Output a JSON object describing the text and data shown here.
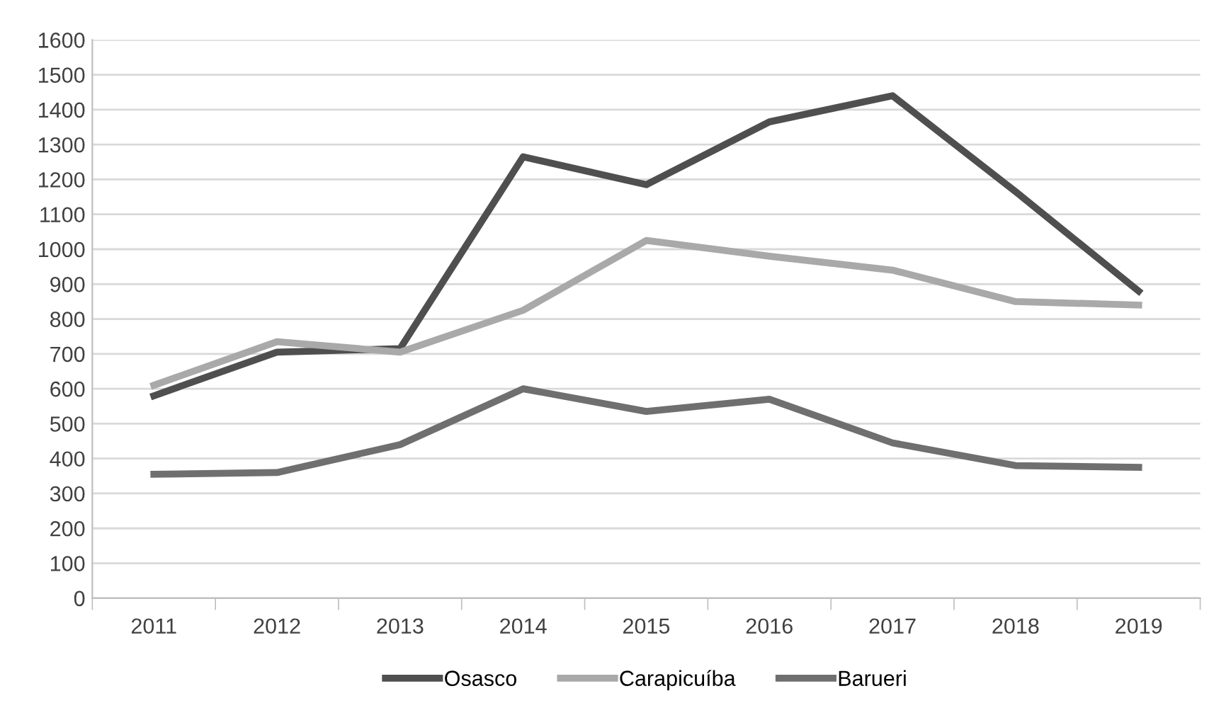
{
  "chart_data": {
    "type": "line",
    "categories": [
      "2011",
      "2012",
      "2013",
      "2014",
      "2015",
      "2016",
      "2017",
      "2018",
      "2019"
    ],
    "series": [
      {
        "name": "Osasco",
        "color": "#4f4f4f",
        "values": [
          580,
          705,
          715,
          1265,
          1185,
          1365,
          1440,
          1165,
          880
        ]
      },
      {
        "name": "Carapicuíba",
        "color": "#a9a9a9",
        "values": [
          610,
          735,
          705,
          825,
          1025,
          980,
          940,
          850,
          840
        ]
      },
      {
        "name": "Barueri",
        "color": "#6f6f6f",
        "values": [
          355,
          360,
          440,
          600,
          535,
          570,
          445,
          380,
          375
        ]
      }
    ],
    "ylim": [
      0,
      1600
    ],
    "yticks": [
      0,
      100,
      200,
      300,
      400,
      500,
      600,
      700,
      800,
      900,
      1000,
      1100,
      1200,
      1300,
      1400,
      1500,
      1600
    ],
    "grid": "y",
    "legend": "bottom",
    "marker": "none",
    "line_style": "solid"
  }
}
